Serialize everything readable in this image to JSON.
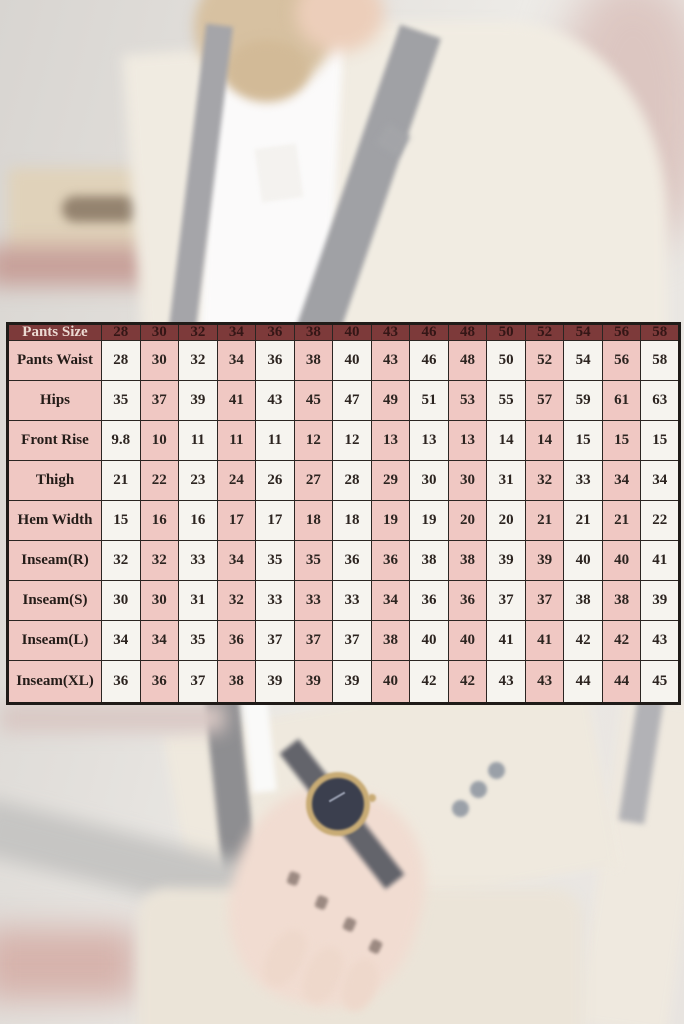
{
  "chart_data": {
    "type": "table",
    "title": "Pants Size",
    "columns": [
      "Pants Size",
      "28",
      "30",
      "32",
      "34",
      "36",
      "38",
      "40",
      "43",
      "46",
      "48",
      "50",
      "52",
      "54",
      "56",
      "58"
    ],
    "rows": [
      {
        "label": "Pants Waist",
        "values": [
          "28",
          "30",
          "32",
          "34",
          "36",
          "38",
          "40",
          "43",
          "46",
          "48",
          "50",
          "52",
          "54",
          "56",
          "58"
        ]
      },
      {
        "label": "Hips",
        "values": [
          "35",
          "37",
          "39",
          "41",
          "43",
          "45",
          "47",
          "49",
          "51",
          "53",
          "55",
          "57",
          "59",
          "61",
          "63"
        ]
      },
      {
        "label": "Front Rise",
        "values": [
          "9.8",
          "10",
          "11",
          "11",
          "11",
          "12",
          "12",
          "13",
          "13",
          "13",
          "14",
          "14",
          "15",
          "15",
          "15"
        ]
      },
      {
        "label": "Thigh",
        "values": [
          "21",
          "22",
          "23",
          "24",
          "26",
          "27",
          "28",
          "29",
          "30",
          "30",
          "31",
          "32",
          "33",
          "34",
          "34"
        ]
      },
      {
        "label": "Hem Width",
        "values": [
          "15",
          "16",
          "16",
          "17",
          "17",
          "18",
          "18",
          "19",
          "19",
          "20",
          "20",
          "21",
          "21",
          "21",
          "22"
        ]
      },
      {
        "label": "Inseam(R)",
        "values": [
          "32",
          "32",
          "33",
          "34",
          "35",
          "35",
          "36",
          "36",
          "38",
          "38",
          "39",
          "39",
          "40",
          "40",
          "41"
        ]
      },
      {
        "label": "Inseam(S)",
        "values": [
          "30",
          "30",
          "31",
          "32",
          "33",
          "33",
          "33",
          "34",
          "36",
          "36",
          "37",
          "37",
          "38",
          "38",
          "39"
        ]
      },
      {
        "label": "Inseam(L)",
        "values": [
          "34",
          "34",
          "35",
          "36",
          "37",
          "37",
          "37",
          "38",
          "40",
          "40",
          "41",
          "41",
          "42",
          "42",
          "43"
        ]
      },
      {
        "label": "Inseam(XL)",
        "values": [
          "36",
          "36",
          "37",
          "38",
          "39",
          "39",
          "39",
          "40",
          "42",
          "42",
          "43",
          "43",
          "44",
          "44",
          "45"
        ]
      }
    ],
    "layout": {
      "header_position": "top-row",
      "grid": true,
      "alternating_columns": true
    },
    "colors": {
      "header_bg": "#7d3a3a",
      "header_label_text": "#ecdad2",
      "header_value_text": "#341616",
      "cell_pink": "#f0c8c3",
      "cell_white": "#f6f4ef",
      "grid_border": "#2b2522",
      "body_text": "#2c2420"
    }
  }
}
